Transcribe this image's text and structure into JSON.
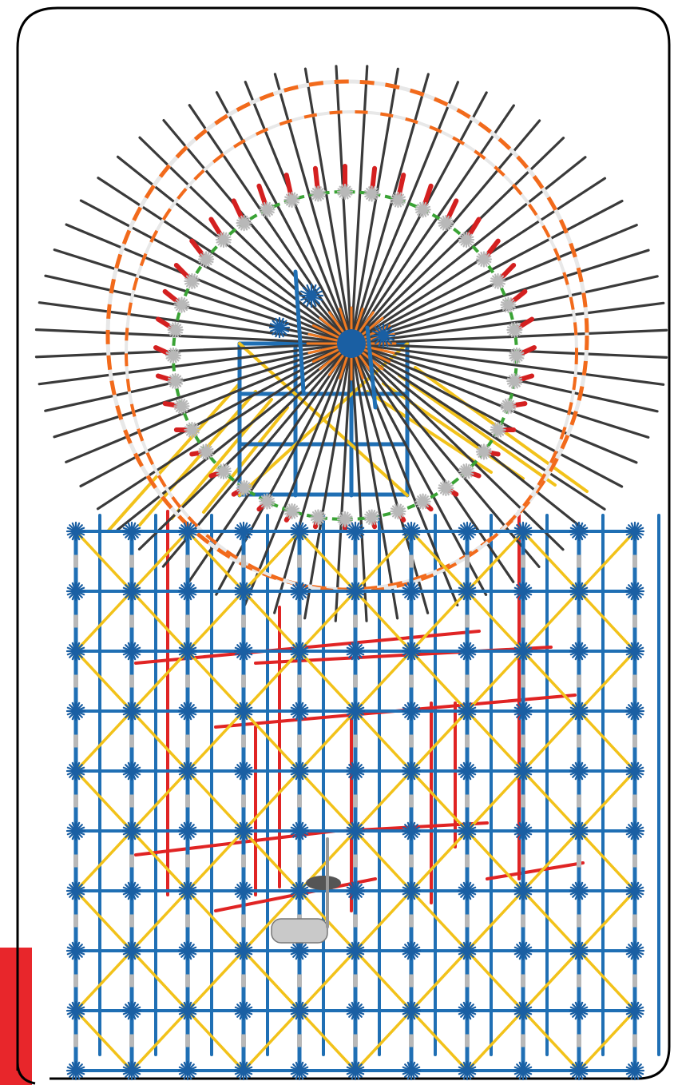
{
  "image": {
    "subject": "k-nex-ferris-wheel-model",
    "colors": {
      "frame_border": "#000000",
      "corner_tab": "#e8262b",
      "blue_rod": "#1f6fb4",
      "blue_connector": "#1a5fa3",
      "yellow_rod": "#f2c21a",
      "red_rod": "#e02424",
      "spoke": "#3a3a3a",
      "outer_ring_orange": "#f26a1b",
      "outer_ring_white": "#e8e8e8",
      "inner_ring_green": "#3aa335",
      "inner_ring_red": "#d42020",
      "gray_connector": "#b8b8b8",
      "hub_orange": "#f07a22"
    },
    "spoke_count": 64,
    "lattice": {
      "columns": 10,
      "rows": 9
    }
  }
}
